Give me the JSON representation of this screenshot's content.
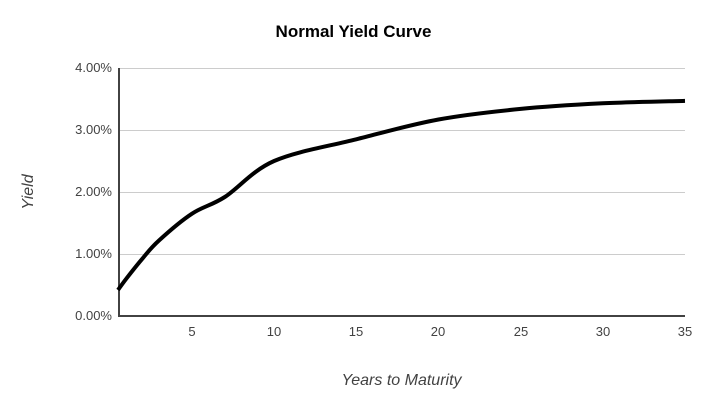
{
  "chart_data": {
    "type": "line",
    "title": "Normal Yield Curve",
    "xlabel": "Years to Maturity",
    "ylabel": "Yield",
    "series": [
      {
        "name": "Yield",
        "x": [
          0.5,
          1,
          2,
          3,
          5,
          7,
          10,
          15,
          20,
          25,
          30,
          35
        ],
        "y_percent": [
          0.42,
          0.6,
          0.93,
          1.22,
          1.65,
          1.92,
          2.5,
          2.85,
          3.17,
          3.34,
          3.43,
          3.47
        ]
      }
    ],
    "xlim": [
      0.5,
      35
    ],
    "ylim": [
      0,
      4
    ],
    "x_ticks": [
      "5",
      "10",
      "15",
      "20",
      "25",
      "30",
      "35"
    ],
    "y_ticks": [
      "4.00%",
      "3.00%",
      "2.00%",
      "1.00%",
      "0.00%"
    ],
    "grid": "horizontal gridlines only",
    "legend": "none",
    "smooth": true,
    "background": "#ffffff",
    "line_color": "#000000",
    "line_width": 4,
    "grid_color": "#cccccc",
    "axis_color": "#424242"
  }
}
